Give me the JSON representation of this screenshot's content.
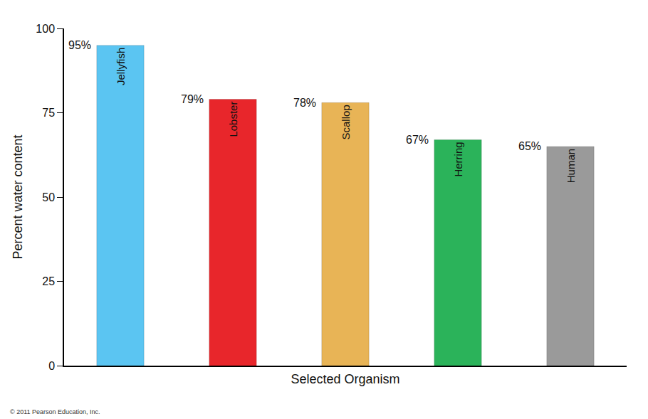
{
  "chart_data": {
    "type": "bar",
    "categories": [
      "Jellyfish",
      "Lobster",
      "Scallop",
      "Herring",
      "Human"
    ],
    "values": [
      95,
      79,
      78,
      67,
      65
    ],
    "value_labels": [
      "95%",
      "79%",
      "78%",
      "67%",
      "65%"
    ],
    "colors": [
      "#5bc5f2",
      "#e8262b",
      "#e8b456",
      "#2bb35a",
      "#9a9a9a"
    ],
    "x_label": "Selected Organism",
    "y_label": "Percent water content",
    "ylim": [
      0,
      100
    ],
    "yticks": [
      0,
      25,
      50,
      75,
      100
    ],
    "grid": false,
    "data_labels": true,
    "tick_labels": "y",
    "annotations": [
      "© 2011 Pearson Education, Inc."
    ]
  }
}
